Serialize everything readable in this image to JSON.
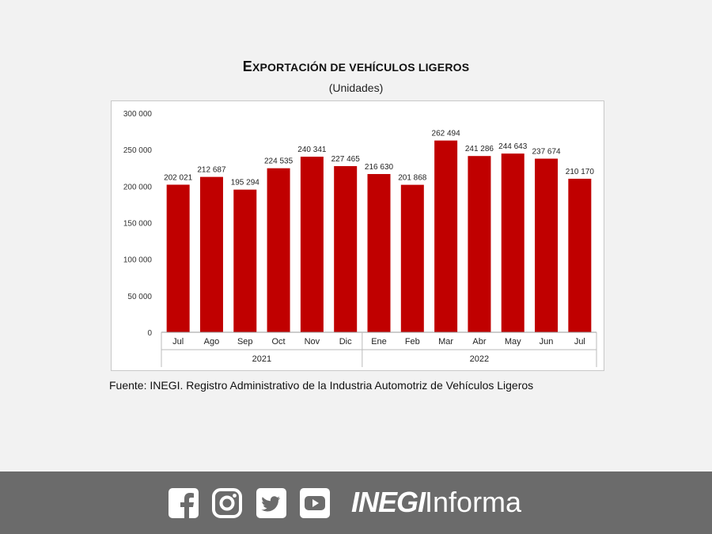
{
  "chart_data": {
    "type": "bar",
    "title_first": "E",
    "title_rest": "XPORTACIÓN DE VEHÍCULOS LIGEROS",
    "subtitle": "(Unidades)",
    "categories": [
      "Jul",
      "Ago",
      "Sep",
      "Oct",
      "Nov",
      "Dic",
      "Ene",
      "Feb",
      "Mar",
      "Abr",
      "May",
      "Jun",
      "Jul"
    ],
    "values": [
      202021,
      212687,
      195294,
      224535,
      240341,
      227465,
      216630,
      201868,
      262494,
      241286,
      244643,
      237674,
      210170
    ],
    "value_labels": [
      "202 021",
      "212 687",
      "195 294",
      "224 535",
      "240 341",
      "227 465",
      "216 630",
      "201 868",
      "262 494",
      "241 286",
      "244 643",
      "237 674",
      "210 170"
    ],
    "year_groups": [
      {
        "label": "2021",
        "from": 0,
        "to": 5
      },
      {
        "label": "2022",
        "from": 6,
        "to": 12
      }
    ],
    "ylim": [
      0,
      300000
    ],
    "yticks": [
      0,
      50000,
      100000,
      150000,
      200000,
      250000,
      300000
    ],
    "ytick_labels": [
      "0",
      "50 000",
      "100 000",
      "150 000",
      "200 000",
      "250 000",
      "300 000"
    ],
    "grid": false,
    "bar_color": "#c00000"
  },
  "source": "Fuente: INEGI. Registro Administrativo de la Industria Automotriz de Vehículos Ligeros",
  "footer": {
    "brand_bold": "INEGI",
    "brand_light": "Informa",
    "icons": [
      "facebook-icon",
      "instagram-icon",
      "twitter-icon",
      "youtube-icon"
    ]
  }
}
